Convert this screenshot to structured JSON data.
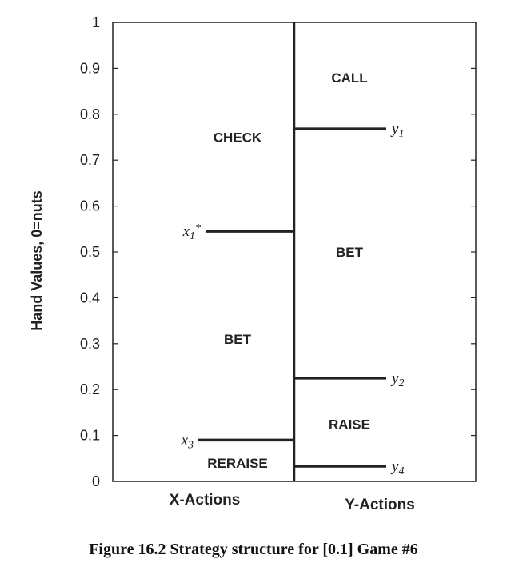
{
  "chart_data": {
    "type": "diagram",
    "ylabel": "Hand Values, 0=nuts",
    "ylim": [
      0,
      1
    ],
    "yticks": [
      "0",
      "0.1",
      "0.2",
      "0.3",
      "0.4",
      "0.5",
      "0.6",
      "0.7",
      "0.8",
      "0.9",
      "1"
    ],
    "ytick_values": [
      0,
      0.1,
      0.2,
      0.3,
      0.4,
      0.5,
      0.6,
      0.7,
      0.8,
      0.9,
      1.0
    ],
    "categories": [
      "X-Actions",
      "Y-Actions"
    ],
    "thresholds": [
      {
        "column": "X-Actions",
        "label": "x",
        "sub": "1",
        "sup": "*",
        "value": 0.545
      },
      {
        "column": "X-Actions",
        "label": "x",
        "sub": "3",
        "sup": "",
        "value": 0.09
      },
      {
        "column": "Y-Actions",
        "label": "y",
        "sub": "1",
        "sup": "",
        "value": 0.768
      },
      {
        "column": "Y-Actions",
        "label": "y",
        "sub": "2",
        "sup": "",
        "value": 0.225
      },
      {
        "column": "Y-Actions",
        "label": "y",
        "sub": "4",
        "sup": "",
        "value": 0.033
      }
    ],
    "regions": [
      {
        "column": "X-Actions",
        "label": "CHECK",
        "value": 0.75
      },
      {
        "column": "X-Actions",
        "label": "BET",
        "value": 0.31
      },
      {
        "column": "X-Actions",
        "label": "RERAISE",
        "value": 0.04
      },
      {
        "column": "Y-Actions",
        "label": "CALL",
        "value": 0.88
      },
      {
        "column": "Y-Actions",
        "label": "BET",
        "value": 0.5
      },
      {
        "column": "Y-Actions",
        "label": "RAISE",
        "value": 0.125
      }
    ]
  },
  "caption": "Figure 16.2 Strategy structure for [0.1] Game #6"
}
